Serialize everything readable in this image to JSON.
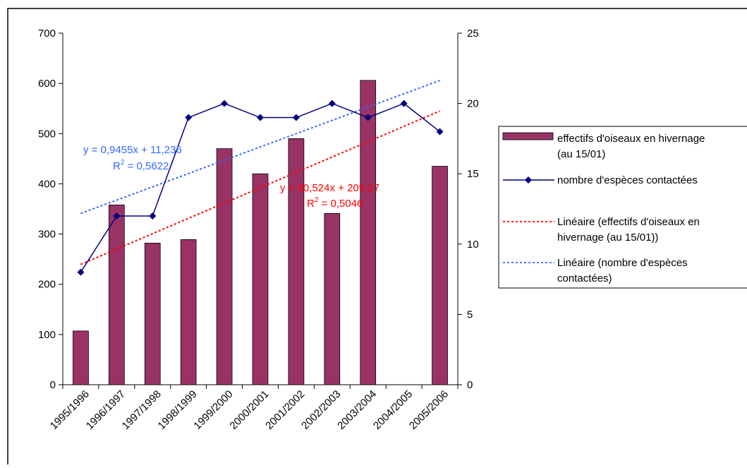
{
  "colors": {
    "bar": "#993366",
    "bar_stroke": "#000000",
    "line": "#000080",
    "trend_bar": "#ff0000",
    "trend_line": "#3366ff",
    "text": "#000000"
  },
  "chart_data": {
    "type": "bar",
    "title": "",
    "xlabel": "",
    "ylabel": "",
    "y2label": "",
    "categories": [
      "1995/1996",
      "1996/1997",
      "1997/1998",
      "1998/1999",
      "1999/2000",
      "2000/2001",
      "2001/2002",
      "2002/2003",
      "2003/2004",
      "2004/2005",
      "2005/2006"
    ],
    "ylim": [
      0,
      700
    ],
    "y_ticks": [
      0,
      100,
      200,
      300,
      400,
      500,
      600,
      700
    ],
    "y2lim": [
      0,
      25
    ],
    "y2_ticks": [
      0,
      5,
      10,
      15,
      20,
      25
    ],
    "grid": false,
    "legend_position": "right",
    "series": [
      {
        "name": "effectifs d'oiseaux en hivernage (au 15/01)",
        "type": "bar",
        "axis": "left",
        "icon": "bar-swatch-icon",
        "values": [
          107,
          358,
          282,
          289,
          470,
          420,
          490,
          341,
          606,
          null,
          435
        ]
      },
      {
        "name": "nombre d'espèces contactées",
        "type": "line",
        "axis": "right",
        "marker": "diamond",
        "icon": "diamond-line-icon",
        "values": [
          8,
          12,
          12,
          19,
          20,
          19,
          19,
          20,
          19,
          20,
          18
        ]
      }
    ],
    "trendlines": [
      {
        "name": "Linéaire (effectifs d'oiseaux en hivernage (au 15/01))",
        "series_index": 0,
        "axis": "left",
        "slope": 30.524,
        "intercept": 209.17,
        "equation": "y = 30,524x + 209,17",
        "r2_value": " = 0,5046",
        "color": "#ff0000",
        "icon": "red-dashed-line-icon"
      },
      {
        "name": "Linéaire (nombre d'espèces contactées)",
        "series_index": 1,
        "axis": "right",
        "slope": 0.9455,
        "intercept": 11.236,
        "equation": "y = 0,9455x + 11,236",
        "r2_value": " = 0,5622",
        "color": "#3366ff",
        "icon": "blue-dashed-line-icon"
      }
    ],
    "legend": [
      {
        "lines": [
          "effectifs d'oiseaux en hivernage",
          "(au 15/01)"
        ],
        "icon": "bar-swatch-icon"
      },
      {
        "lines": [
          "nombre d'espèces contactées"
        ],
        "icon": "diamond-line-icon"
      },
      {
        "lines": [
          "Linéaire (effectifs d'oiseaux en",
          "hivernage (au 15/01))"
        ],
        "icon": "red-dashed-line-icon"
      },
      {
        "lines": [
          "Linéaire (nombre d'espèces",
          "contactées)"
        ],
        "icon": "blue-dashed-line-icon"
      }
    ]
  }
}
